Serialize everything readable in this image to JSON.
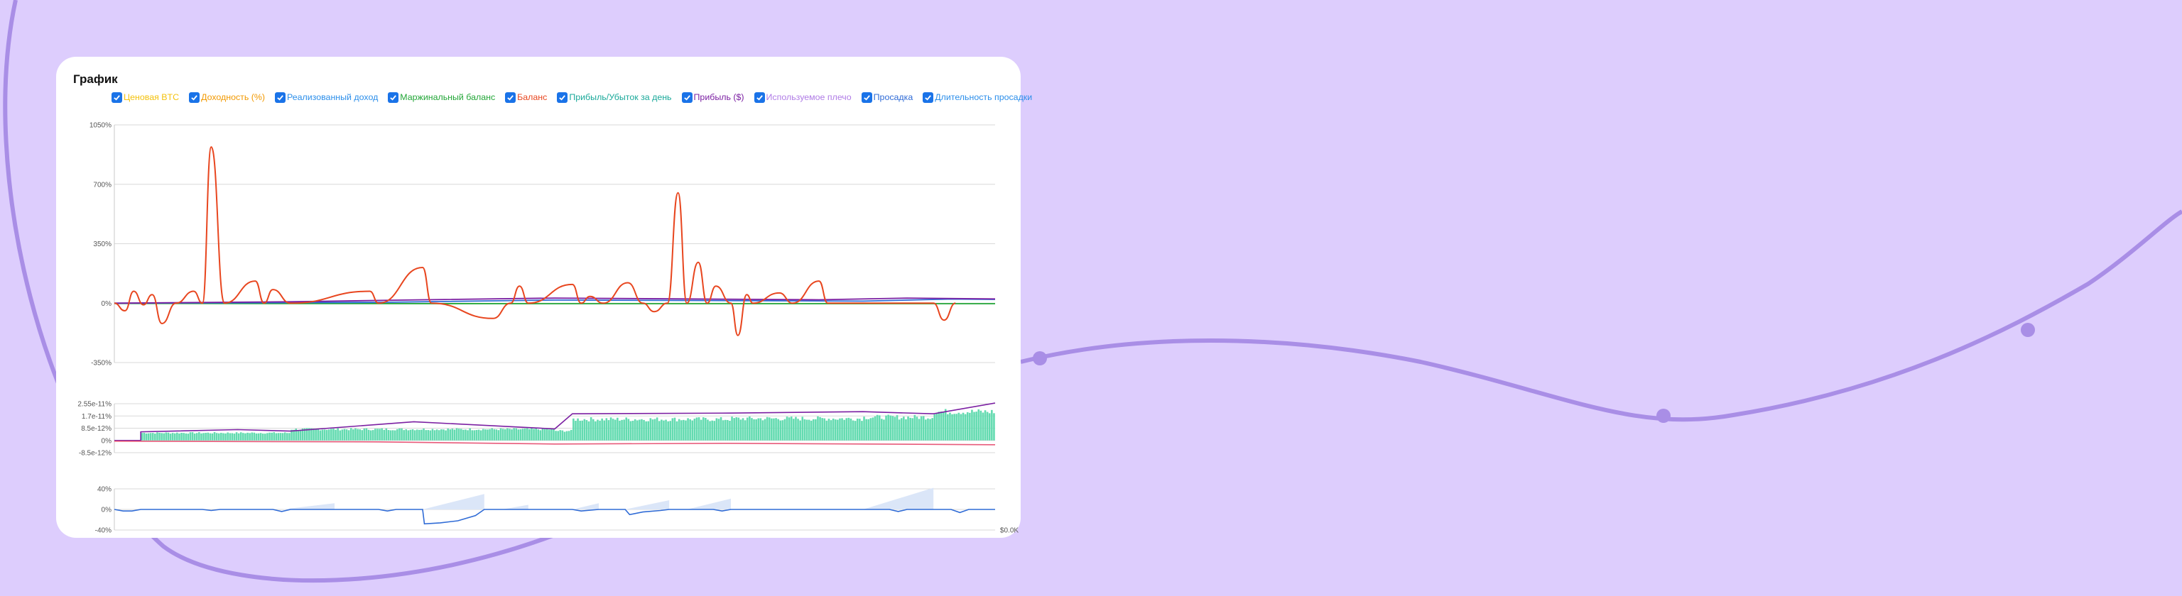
{
  "page": {
    "background": "#ddcdfd",
    "decor_line_color": "#a98ee6"
  },
  "card": {
    "title": "График"
  },
  "legend": [
    {
      "label": "Ценовая BTC",
      "color": "#f4c20d",
      "checked": true
    },
    {
      "label": "Доходность (%)",
      "color": "#f29900",
      "checked": true
    },
    {
      "label": "Реализованный доход",
      "color": "#2b8eea",
      "checked": true
    },
    {
      "label": "Маржинальный баланс",
      "color": "#22a637",
      "checked": true
    },
    {
      "label": "Баланс",
      "color": "#e8461f",
      "checked": true
    },
    {
      "label": "Прибыль/Убыток за день",
      "color": "#1aa99a",
      "checked": true
    },
    {
      "label": "Прибыль ($)",
      "color": "#7b1fa2",
      "checked": true
    },
    {
      "label": "Используемое плечо",
      "color": "#b07ce6",
      "checked": true
    },
    {
      "label": "Просадка",
      "color": "#2f6bd6",
      "checked": true
    },
    {
      "label": "Длительность просадки",
      "color": "#2b8eea",
      "checked": true
    }
  ],
  "chart_data": [
    {
      "type": "line",
      "name": "returns-panel",
      "y_unit": "%",
      "ylim": [
        -350,
        1050
      ],
      "yticks": [
        "1050%",
        "700%",
        "350%",
        "0%",
        "-350%"
      ],
      "grid": true,
      "x_range": [
        0,
        1
      ],
      "series": [
        {
          "name": "Баланс",
          "color": "#e8461f",
          "points": [
            [
              0.0,
              0
            ],
            [
              0.012,
              -45
            ],
            [
              0.022,
              70
            ],
            [
              0.033,
              -10
            ],
            [
              0.043,
              50
            ],
            [
              0.054,
              -120
            ],
            [
              0.07,
              0
            ],
            [
              0.09,
              70
            ],
            [
              0.1,
              0
            ],
            [
              0.11,
              920
            ],
            [
              0.125,
              0
            ],
            [
              0.16,
              130
            ],
            [
              0.17,
              0
            ],
            [
              0.18,
              80
            ],
            [
              0.2,
              0
            ],
            [
              0.29,
              70
            ],
            [
              0.3,
              0
            ],
            [
              0.35,
              210
            ],
            [
              0.36,
              0
            ],
            [
              0.43,
              -90
            ],
            [
              0.45,
              0
            ],
            [
              0.46,
              100
            ],
            [
              0.47,
              0
            ],
            [
              0.52,
              110
            ],
            [
              0.53,
              0
            ],
            [
              0.54,
              40
            ],
            [
              0.555,
              0
            ],
            [
              0.583,
              120
            ],
            [
              0.6,
              0
            ],
            [
              0.613,
              -50
            ],
            [
              0.628,
              0
            ],
            [
              0.64,
              650
            ],
            [
              0.65,
              0
            ],
            [
              0.663,
              240
            ],
            [
              0.673,
              0
            ],
            [
              0.683,
              100
            ],
            [
              0.7,
              0
            ],
            [
              0.708,
              -190
            ],
            [
              0.718,
              50
            ],
            [
              0.725,
              0
            ],
            [
              0.755,
              60
            ],
            [
              0.77,
              0
            ],
            [
              0.8,
              130
            ],
            [
              0.81,
              0
            ],
            [
              0.93,
              0
            ],
            [
              0.942,
              -100
            ],
            [
              0.955,
              0
            ]
          ]
        },
        {
          "name": "Прибыль ($)",
          "color": "#7b1fa2",
          "points": [
            [
              0.0,
              0
            ],
            [
              0.2,
              8
            ],
            [
              0.35,
              20
            ],
            [
              0.5,
              30
            ],
            [
              0.65,
              25
            ],
            [
              0.8,
              20
            ],
            [
              0.9,
              30
            ],
            [
              1.0,
              25
            ]
          ]
        },
        {
          "name": "Просадка",
          "color": "#2f6bd6",
          "points": [
            [
              0.0,
              0
            ],
            [
              0.3,
              5
            ],
            [
              0.5,
              18
            ],
            [
              0.7,
              15
            ],
            [
              0.85,
              12
            ],
            [
              0.95,
              24
            ],
            [
              1.0,
              22
            ]
          ]
        },
        {
          "name": "Маржинальный баланс",
          "color": "#22a637",
          "points": [
            [
              0.0,
              -2
            ],
            [
              0.5,
              -3
            ],
            [
              1.0,
              -3
            ]
          ]
        }
      ]
    },
    {
      "type": "bar",
      "name": "pnl-panel",
      "ylim": [
        -8.5e-12,
        2.55e-11
      ],
      "yticks": [
        "2.55e-11%",
        "1.7e-11%",
        "8.5e-12%",
        "0%",
        "-8.5e-12%"
      ],
      "grid": true,
      "bar_color": "#63dbb0",
      "bar_levels": [
        {
          "from": 0.0,
          "to": 0.03,
          "value": 0
        },
        {
          "from": 0.03,
          "to": 0.2,
          "value": 5.5e-12
        },
        {
          "from": 0.2,
          "to": 0.5,
          "value": 8.2e-12
        },
        {
          "from": 0.5,
          "to": 0.52,
          "value": 7e-12
        },
        {
          "from": 0.52,
          "to": 0.7,
          "value": 1.55e-11
        },
        {
          "from": 0.7,
          "to": 0.85,
          "value": 1.6e-11
        },
        {
          "from": 0.85,
          "to": 0.93,
          "value": 1.7e-11
        },
        {
          "from": 0.93,
          "to": 1.0,
          "value": 2.1e-11
        }
      ],
      "line_series": [
        {
          "name": "Используемое плечо",
          "color": "#7b1fa2",
          "points": [
            [
              0.0,
              0
            ],
            [
              0.03,
              0
            ],
            [
              0.03,
              6e-12
            ],
            [
              0.14,
              7.5e-12
            ],
            [
              0.2,
              6.5e-12
            ],
            [
              0.34,
              1.3e-11
            ],
            [
              0.5,
              8e-12
            ],
            [
              0.52,
              1.85e-11
            ],
            [
              0.7,
              1.9e-11
            ],
            [
              0.85,
              2e-11
            ],
            [
              0.93,
              1.85e-11
            ],
            [
              1.0,
              2.6e-11
            ]
          ]
        },
        {
          "name": "Прибыль/Убыток за день",
          "color": "#e85a7a",
          "points": [
            [
              0.0,
              -5e-13
            ],
            [
              0.3,
              -1e-12
            ],
            [
              0.5,
              -2.5e-12
            ],
            [
              0.7,
              -2e-12
            ],
            [
              1.0,
              -3e-12
            ]
          ]
        }
      ]
    },
    {
      "type": "area",
      "name": "drawdown-panel",
      "ylim": [
        -40,
        40
      ],
      "yticks": [
        "40%",
        "0%",
        "-40%"
      ],
      "grid": true,
      "x_tick": "$0.0K",
      "drawdown_color": "#2f6bd6",
      "duration_color": "#dbe6f8",
      "drawdown_points": [
        [
          0.0,
          0
        ],
        [
          0.01,
          -3
        ],
        [
          0.02,
          -3
        ],
        [
          0.03,
          0
        ],
        [
          0.1,
          0
        ],
        [
          0.11,
          -2
        ],
        [
          0.12,
          0
        ],
        [
          0.18,
          0
        ],
        [
          0.19,
          -4
        ],
        [
          0.2,
          0
        ],
        [
          0.3,
          0
        ],
        [
          0.31,
          -3
        ],
        [
          0.32,
          0
        ],
        [
          0.35,
          0
        ],
        [
          0.352,
          -28
        ],
        [
          0.37,
          -26
        ],
        [
          0.39,
          -22
        ],
        [
          0.41,
          -12
        ],
        [
          0.42,
          0
        ],
        [
          0.52,
          0
        ],
        [
          0.53,
          -3
        ],
        [
          0.55,
          0
        ],
        [
          0.58,
          0
        ],
        [
          0.585,
          -10
        ],
        [
          0.6,
          -5
        ],
        [
          0.62,
          -2
        ],
        [
          0.63,
          0
        ],
        [
          0.68,
          0
        ],
        [
          0.69,
          -3
        ],
        [
          0.7,
          0
        ],
        [
          0.88,
          0
        ],
        [
          0.89,
          -4
        ],
        [
          0.9,
          0
        ],
        [
          0.95,
          0
        ],
        [
          0.96,
          -6
        ],
        [
          0.97,
          0
        ],
        [
          1.0,
          0
        ]
      ],
      "duration_triangles": [
        [
          0.19,
          0.25,
          12
        ],
        [
          0.35,
          0.42,
          30
        ],
        [
          0.44,
          0.47,
          9
        ],
        [
          0.52,
          0.55,
          12
        ],
        [
          0.58,
          0.63,
          18
        ],
        [
          0.65,
          0.7,
          21
        ],
        [
          0.85,
          0.93,
          42
        ]
      ]
    }
  ]
}
